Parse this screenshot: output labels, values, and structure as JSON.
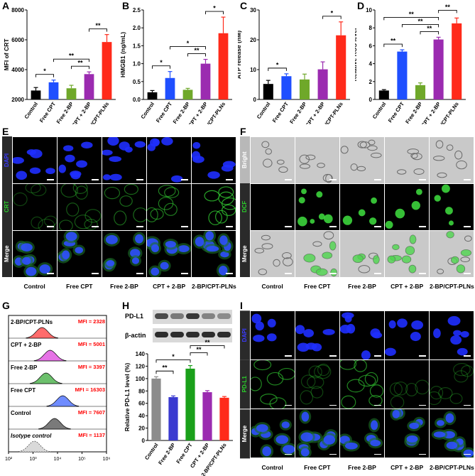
{
  "panel_letters": [
    "A",
    "B",
    "C",
    "D",
    "E",
    "F",
    "G",
    "H",
    "I"
  ],
  "colors": {
    "Control": "#000000",
    "Free CPT": "#1f4fff",
    "Free 2-BP": "#6fa82a",
    "CPT + 2-BP": "#9b2bb0",
    "2-BP/CPT-PLNs": "#ff2a1a",
    "grey": "#8c8c8c",
    "green": "#1aa01a",
    "stat_red": "#ff0000"
  },
  "chart_data": [
    {
      "id": "A",
      "type": "bar",
      "categories": [
        "Control",
        "Free CPT",
        "Free 2-BP",
        "CPT + 2-BP",
        "2-BP/CPT-PLNs"
      ],
      "values": [
        2600,
        3150,
        2750,
        3700,
        5850
      ],
      "errors": [
        200,
        150,
        200,
        150,
        500
      ],
      "ylabel": "MFI of CRT",
      "ylim": [
        2000,
        8000
      ],
      "yticks": [
        2000,
        4000,
        6000,
        8000
      ],
      "sig": [
        {
          "from": 0,
          "to": 1,
          "label": "*"
        },
        {
          "from": 2,
          "to": 3,
          "label": "**"
        },
        {
          "from": 1,
          "to": 3,
          "label": "**"
        },
        {
          "from": 3,
          "to": 4,
          "label": "**"
        }
      ]
    },
    {
      "id": "B",
      "type": "bar",
      "categories": [
        "Control",
        "Free CPT",
        "Free 2-BP",
        "CPT + 2-BP",
        "2-BP/CPT-PLNs"
      ],
      "values": [
        0.2,
        0.6,
        0.27,
        1.0,
        1.85
      ],
      "errors": [
        0.05,
        0.18,
        0.04,
        0.12,
        0.45
      ],
      "ylabel": "HMGB1 (ng/mL)",
      "ylim": [
        0.0,
        2.5
      ],
      "yticks": [
        0.0,
        0.5,
        1.0,
        1.5,
        2.0,
        2.5
      ],
      "sig": [
        {
          "from": 0,
          "to": 1,
          "label": "*"
        },
        {
          "from": 2,
          "to": 3,
          "label": "**"
        },
        {
          "from": 1,
          "to": 3,
          "label": "*"
        },
        {
          "from": 3,
          "to": 4,
          "label": "*"
        }
      ]
    },
    {
      "id": "C",
      "type": "bar",
      "categories": [
        "Control",
        "Free CPT",
        "Free 2-BP",
        "CPT + 2-BP",
        "2-BP/CPT-PLNs"
      ],
      "values": [
        5.2,
        7.8,
        6.7,
        10.1,
        21.5
      ],
      "errors": [
        1.2,
        0.8,
        1.8,
        2.5,
        4.5
      ],
      "ylabel": "ATP release (nM)",
      "ylim": [
        0,
        30
      ],
      "yticks": [
        0,
        10,
        20,
        30
      ],
      "sig": [
        {
          "from": 0,
          "to": 1,
          "label": "*"
        },
        {
          "from": 3,
          "to": 4,
          "label": "*"
        }
      ]
    },
    {
      "id": "D",
      "type": "bar",
      "categories": [
        "Control",
        "Free CPT",
        "Free 2-BP",
        "CPT + 2-BP",
        "2-BP/CPT-PLNs"
      ],
      "values": [
        1.0,
        5.35,
        1.6,
        6.7,
        8.5
      ],
      "errors": [
        0.1,
        0.2,
        0.25,
        0.25,
        0.6
      ],
      "ylabel": "Relative ROS level",
      "ylim": [
        0,
        10
      ],
      "yticks": [
        0,
        2,
        4,
        6,
        8,
        10
      ],
      "sig": [
        {
          "from": 0,
          "to": 1,
          "label": "**"
        },
        {
          "from": 2,
          "to": 3,
          "label": "**"
        },
        {
          "from": 1,
          "to": 3,
          "label": "**"
        },
        {
          "from": 0,
          "to": 3,
          "label": "**"
        },
        {
          "from": 3,
          "to": 4,
          "label": "**"
        }
      ]
    },
    {
      "id": "H",
      "type": "bar",
      "categories": [
        "Control",
        "Free 2-BP",
        "Free CPT",
        "CPT + 2-BP",
        "2-BP/CPT-PLNs"
      ],
      "values": [
        100,
        70,
        116,
        78,
        69
      ],
      "errors": [
        3,
        2,
        5,
        2.5,
        2
      ],
      "ylabel": "Relative PD-L1 level (%)",
      "ylim": [
        0,
        140
      ],
      "yticks": [
        0,
        20,
        40,
        60,
        80,
        100,
        120,
        140
      ],
      "sig": [
        {
          "from": 0,
          "to": 1,
          "label": "**"
        },
        {
          "from": 0,
          "to": 2,
          "label": "*"
        },
        {
          "from": 2,
          "to": 3,
          "label": "**"
        },
        {
          "from": 2,
          "to": 4,
          "label": "**"
        }
      ]
    },
    {
      "id": "G",
      "type": "histogram",
      "title": "",
      "xticks": [
        "10²",
        "10³",
        "10⁴",
        "10⁵",
        "10⁶"
      ],
      "tracks": [
        {
          "name": "2-BP/CPT-PLNs",
          "mfi": "MFI = 2328",
          "peak": 2328,
          "color": "#ff6b6b"
        },
        {
          "name": "CPT + 2-BP",
          "mfi": "MFI = 5001",
          "peak": 5001,
          "color": "#e673e6"
        },
        {
          "name": "Free 2-BP",
          "mfi": "MFI = 3397",
          "peak": 3397,
          "color": "#6cc06c"
        },
        {
          "name": "Free CPT",
          "mfi": "MFI = 16303",
          "peak": 16303,
          "color": "#6f8cff"
        },
        {
          "name": "Control",
          "mfi": "MFI = 7607",
          "peak": 7607,
          "color": "#7a7a7a"
        },
        {
          "name": "Isotype control",
          "mfi": "MFI = 1137",
          "peak": 1137,
          "color": "#d9d9d9"
        }
      ]
    }
  ],
  "panel_E": {
    "rows": [
      "DAPI",
      "CRT",
      "Merge"
    ],
    "columns": [
      "Control",
      "Free CPT",
      "Free 2-BP",
      "CPT + 2-BP",
      "2-BP/CPT-PLNs"
    ]
  },
  "panel_F": {
    "rows": [
      "Bright",
      "DCF",
      "Merge"
    ],
    "columns": [
      "Control",
      "Free CPT",
      "Free 2-BP",
      "CPT + 2-BP",
      "2-BP/CPT-PLNs"
    ]
  },
  "panel_I": {
    "rows": [
      "DAPI",
      "PD-L1",
      "Merge"
    ],
    "columns": [
      "Control",
      "Free CPT",
      "Free 2-BP",
      "CPT + 2-BP",
      "2-BP/CPT-PLNs"
    ]
  },
  "blot": {
    "labels": [
      "PD-L1",
      "β-actin"
    ]
  }
}
